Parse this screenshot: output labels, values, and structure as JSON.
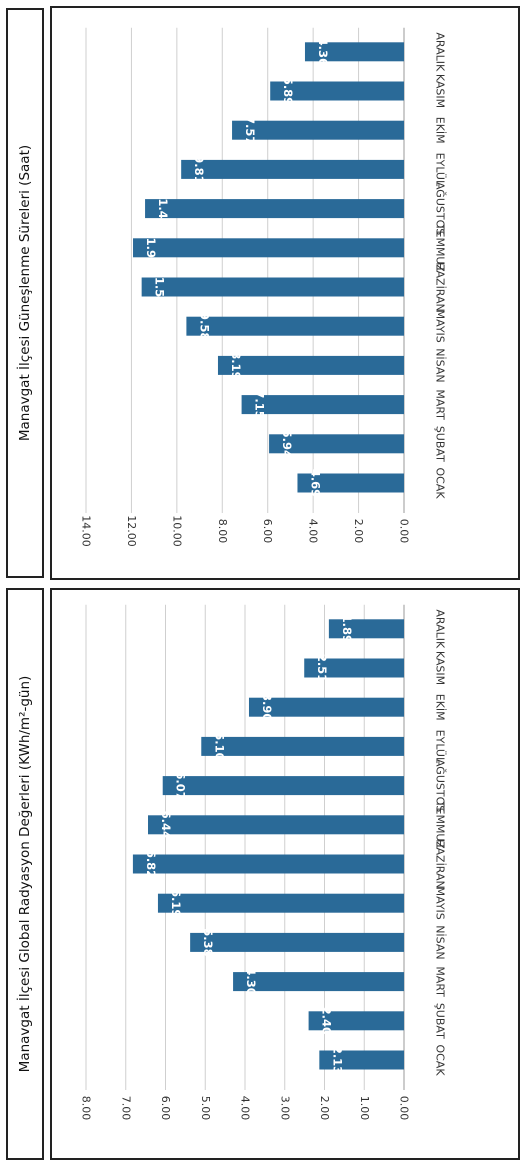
{
  "chart_data": [
    {
      "type": "bar",
      "title": "Manavgat İlçesi Güneşlenme Süreleri (Saat)",
      "categories": [
        "OCAK",
        "ŞUBAT",
        "MART",
        "NİSAN",
        "MAYIS",
        "HAZİRAN",
        "TEMMUZ",
        "AĞUSTOS",
        "EYLÜL",
        "EKİM",
        "KASIM",
        "ARALIK"
      ],
      "values": [
        4.69,
        5.94,
        7.15,
        8.19,
        9.58,
        11.55,
        11.93,
        11.4,
        9.81,
        7.57,
        5.89,
        4.36
      ],
      "value_labels": [
        "4.69",
        "5.94",
        "7.15",
        "8.19",
        "9.58",
        "11.55",
        "11.93",
        "11.40",
        "9.81",
        "7.57",
        "5.89",
        "4.36"
      ],
      "ticks": [
        "0.00",
        "2.00",
        "4.00",
        "6.00",
        "8.00",
        "10.00",
        "12.00",
        "14.00"
      ],
      "ylim": [
        0,
        14
      ],
      "grid": true,
      "bar_color": "#2a6a98"
    },
    {
      "type": "bar",
      "title": "Manavgat İlçesi Global Radyasyon Değerleri (KWh/m²-gün)",
      "categories": [
        "OCAK",
        "ŞUBAT",
        "MART",
        "NİSAN",
        "MAYIS",
        "HAZİRAN",
        "TEMMUZ",
        "AĞUSTOS",
        "EYLÜL",
        "EKİM",
        "KASIM",
        "ARALIK"
      ],
      "values": [
        2.13,
        2.4,
        4.3,
        5.38,
        6.19,
        6.82,
        6.44,
        6.07,
        5.1,
        3.9,
        2.51,
        1.89
      ],
      "value_labels": [
        "2.13",
        "2.40",
        "4.30",
        "5.38",
        "6.19",
        "6.82",
        "6.44",
        "6.07",
        "5.10",
        "3.90",
        "2.51",
        "1.89"
      ],
      "ticks": [
        "0.00",
        "1.00",
        "2.00",
        "3.00",
        "4.00",
        "5.00",
        "6.00",
        "7.00",
        "8.00"
      ],
      "ylim": [
        0,
        8
      ],
      "grid": true,
      "bar_color": "#2a6a98"
    }
  ]
}
